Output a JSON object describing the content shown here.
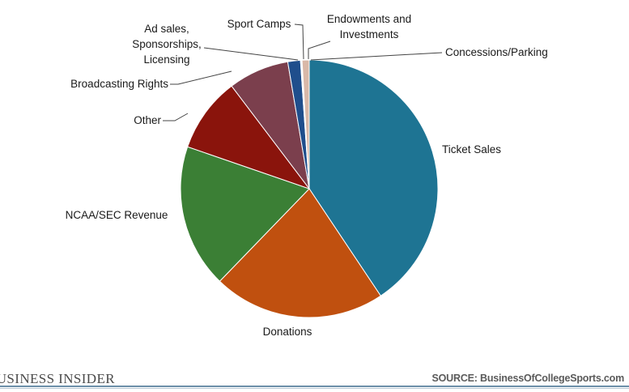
{
  "chart_data": {
    "type": "pie",
    "title": "",
    "start_angle_deg": 0,
    "direction": "clockwise",
    "slices": [
      {
        "label": "Ticket Sales",
        "value": 41.0,
        "color": "#1e7493"
      },
      {
        "label": "Donations",
        "value": 21.8,
        "color": "#c0500f"
      },
      {
        "label": "NCAA/SEC Revenue",
        "value": 18.2,
        "color": "#3b7f35"
      },
      {
        "label": "Other",
        "value": 9.5,
        "color": "#8a140c"
      },
      {
        "label": "Broadcasting Rights",
        "value": 7.7,
        "color": "#7b3f4d"
      },
      {
        "label": "Ad sales,\nSponsorships,\nLicensing",
        "value": 1.6,
        "color": "#1f4e8c"
      },
      {
        "label": "Sport Camps",
        "value": 0.1,
        "color": "#15304f"
      },
      {
        "label": "Endowments and\nInvestments",
        "value": 0.1,
        "color": "#c98f7a"
      },
      {
        "label": "Concessions/Parking",
        "value": 0.9,
        "color": "#d9b8a8"
      }
    ]
  },
  "footer": {
    "brand": "BUSINESS INSIDER",
    "source": "SOURCE: BusinessOfCollegeSports.com"
  }
}
